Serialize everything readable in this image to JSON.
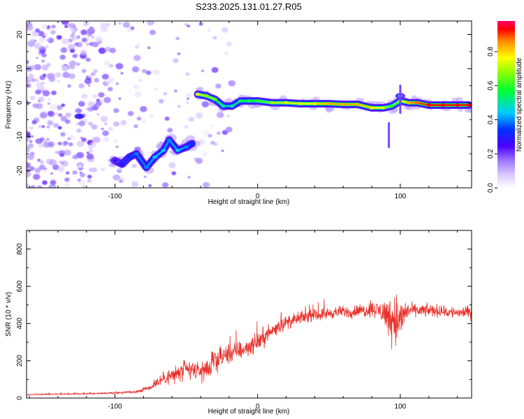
{
  "title": "S233.2025.131.01.27.R05",
  "chart_data": [
    {
      "type": "heatmap",
      "xlabel": "Height of straight line (km)",
      "ylabel": "Frequency (Hz)",
      "xlim": [
        -162,
        150
      ],
      "ylim": [
        -25,
        24
      ],
      "x_ticks": [
        "-100",
        "0",
        "100"
      ],
      "x_tick_values": [
        -100,
        0,
        100
      ],
      "y_ticks": [
        "20",
        "10",
        "0",
        "-10",
        "-20"
      ],
      "y_tick_values": [
        20,
        10,
        0,
        -10,
        -20
      ],
      "colorbar": {
        "label": "Normalized spectral amplitude",
        "ticks": [
          "0.0",
          "0.2",
          "0.4",
          "0.6",
          "0.8"
        ],
        "tick_values": [
          0.0,
          0.2,
          0.4,
          0.6,
          0.8
        ],
        "range": [
          0,
          0.98
        ]
      },
      "ridge": [
        {
          "x": -100,
          "y": -17,
          "amp": 0.35
        },
        {
          "x": -95,
          "y": -18,
          "amp": 0.3
        },
        {
          "x": -90,
          "y": -16,
          "amp": 0.35
        },
        {
          "x": -85,
          "y": -15,
          "amp": 0.4
        },
        {
          "x": -78,
          "y": -19,
          "amp": 0.4
        },
        {
          "x": -72,
          "y": -16,
          "amp": 0.45
        },
        {
          "x": -66,
          "y": -14,
          "amp": 0.45
        },
        {
          "x": -62,
          "y": -11,
          "amp": 0.4
        },
        {
          "x": -56,
          "y": -14,
          "amp": 0.45
        },
        {
          "x": -50,
          "y": -13,
          "amp": 0.4
        },
        {
          "x": -46,
          "y": -12,
          "amp": 0.35
        },
        {
          "x": -42,
          "y": 2.5,
          "amp": 0.75
        },
        {
          "x": -36,
          "y": 2.0,
          "amp": 0.7
        },
        {
          "x": -30,
          "y": 1.0,
          "amp": 0.65
        },
        {
          "x": -24,
          "y": -1.0,
          "amp": 0.5
        },
        {
          "x": -18,
          "y": -1.0,
          "amp": 0.5
        },
        {
          "x": -12,
          "y": 0.5,
          "amp": 0.55
        },
        {
          "x": -6,
          "y": 0.5,
          "amp": 0.6
        },
        {
          "x": 0,
          "y": 0.5,
          "amp": 0.6
        },
        {
          "x": 10,
          "y": 0.0,
          "amp": 0.7
        },
        {
          "x": 20,
          "y": 0.0,
          "amp": 0.75
        },
        {
          "x": 30,
          "y": -0.3,
          "amp": 0.75
        },
        {
          "x": 40,
          "y": -0.3,
          "amp": 0.8
        },
        {
          "x": 50,
          "y": -0.3,
          "amp": 0.85
        },
        {
          "x": 60,
          "y": -0.5,
          "amp": 0.85
        },
        {
          "x": 70,
          "y": -0.5,
          "amp": 0.85
        },
        {
          "x": 80,
          "y": -1.5,
          "amp": 0.8
        },
        {
          "x": 88,
          "y": -1.5,
          "amp": 0.75
        },
        {
          "x": 94,
          "y": -1.0,
          "amp": 0.6
        },
        {
          "x": 100,
          "y": 0.5,
          "amp": 0.7
        },
        {
          "x": 106,
          "y": 0.0,
          "amp": 0.85
        },
        {
          "x": 112,
          "y": 0.0,
          "amp": 0.9
        },
        {
          "x": 120,
          "y": -0.7,
          "amp": 0.95
        },
        {
          "x": 130,
          "y": -0.7,
          "amp": 0.95
        },
        {
          "x": 140,
          "y": -0.7,
          "amp": 0.95
        },
        {
          "x": 148,
          "y": -0.7,
          "amp": 0.95
        }
      ],
      "hot_spots": [
        {
          "x": -125,
          "y": -4,
          "amp": 0.35
        },
        {
          "x": -100,
          "y": -17,
          "amp": 0.3
        },
        {
          "x": 100,
          "y": 2,
          "amp": 0.45
        }
      ],
      "noise_region": {
        "x_start": -162,
        "x_end": -50,
        "amp": 0.1
      }
    },
    {
      "type": "line",
      "xlabel": "Height of straight line (km)",
      "ylabel": "SNR (10 * v/v)",
      "xlim": [
        -162,
        150
      ],
      "ylim": [
        0,
        900
      ],
      "x_ticks": [
        "-100",
        "0",
        "100"
      ],
      "x_tick_values": [
        -100,
        0,
        100
      ],
      "y_ticks": [
        "0",
        "200",
        "400",
        "600",
        "800"
      ],
      "y_tick_values": [
        0,
        200,
        400,
        600,
        800
      ],
      "color": "#e8302a",
      "series": [
        {
          "x": [
            -162,
            -150,
            -140,
            -130,
            -120,
            -110,
            -100,
            -90,
            -85,
            -80,
            -75,
            -70,
            -65,
            -60,
            -55,
            -50,
            -45,
            -40,
            -35,
            -30,
            -25,
            -20,
            -15,
            -10,
            -5,
            0,
            5,
            10,
            15,
            20,
            25,
            30,
            35,
            40,
            45,
            50,
            55,
            60,
            65,
            70,
            75,
            80,
            85,
            90,
            95,
            98,
            100,
            102,
            104,
            106,
            110,
            115,
            120,
            125,
            130,
            135,
            140,
            145,
            150
          ],
          "y": [
            18,
            20,
            22,
            22,
            24,
            25,
            28,
            32,
            35,
            45,
            60,
            90,
            110,
            120,
            135,
            150,
            150,
            140,
            160,
            190,
            220,
            240,
            250,
            260,
            280,
            300,
            330,
            360,
            390,
            405,
            415,
            430,
            440,
            445,
            450,
            455,
            460,
            465,
            460,
            470,
            470,
            480,
            470,
            450,
            430,
            420,
            380,
            450,
            460,
            470,
            470,
            470,
            470,
            470,
            465,
            460,
            460,
            460,
            460
          ],
          "amp": [
            4,
            5,
            5,
            5,
            6,
            6,
            7,
            10,
            12,
            18,
            30,
            45,
            60,
            70,
            80,
            85,
            80,
            75,
            80,
            85,
            85,
            80,
            75,
            75,
            70,
            70,
            70,
            65,
            60,
            55,
            50,
            50,
            45,
            45,
            45,
            45,
            45,
            45,
            45,
            50,
            55,
            60,
            70,
            120,
            200,
            250,
            230,
            120,
            70,
            55,
            50,
            50,
            50,
            50,
            50,
            50,
            50,
            50,
            50
          ],
          "n_samples": 1600
        }
      ]
    }
  ]
}
